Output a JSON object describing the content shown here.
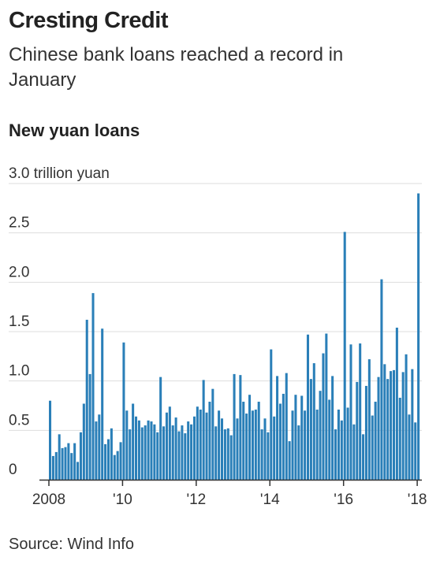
{
  "header": {
    "title": "Cresting Credit",
    "subtitle": "Chinese bank loans reached a record in January"
  },
  "chart_title": "New yuan loans",
  "source": "Source: Wind Info",
  "colors": {
    "bar": "#2a7fb8",
    "grid": "#dddddd",
    "axis": "#333333"
  },
  "chart_data": {
    "type": "bar",
    "title": "New yuan loans",
    "ylabel": "trillion yuan",
    "ylim": [
      0,
      3.0
    ],
    "y_ticks": [
      0,
      0.5,
      1.0,
      1.5,
      2.0,
      2.5,
      3.0
    ],
    "y_tick_labels": [
      "0",
      "0.5",
      "1.0",
      "1.5",
      "2.0",
      "2.5",
      "3.0 trillion yuan"
    ],
    "x_ticks": [
      "2008",
      "'10",
      "'12",
      "'14",
      "'16",
      "'18"
    ],
    "x_tick_years": [
      2008,
      2010,
      2012,
      2014,
      2016,
      2018
    ],
    "start": "2008-01",
    "categories": [
      "2008-01",
      "2008-02",
      "2008-03",
      "2008-04",
      "2008-05",
      "2008-06",
      "2008-07",
      "2008-08",
      "2008-09",
      "2008-10",
      "2008-11",
      "2008-12",
      "2009-01",
      "2009-02",
      "2009-03",
      "2009-04",
      "2009-05",
      "2009-06",
      "2009-07",
      "2009-08",
      "2009-09",
      "2009-10",
      "2009-11",
      "2009-12",
      "2010-01",
      "2010-02",
      "2010-03",
      "2010-04",
      "2010-05",
      "2010-06",
      "2010-07",
      "2010-08",
      "2010-09",
      "2010-10",
      "2010-11",
      "2010-12",
      "2011-01",
      "2011-02",
      "2011-03",
      "2011-04",
      "2011-05",
      "2011-06",
      "2011-07",
      "2011-08",
      "2011-09",
      "2011-10",
      "2011-11",
      "2011-12",
      "2012-01",
      "2012-02",
      "2012-03",
      "2012-04",
      "2012-05",
      "2012-06",
      "2012-07",
      "2012-08",
      "2012-09",
      "2012-10",
      "2012-11",
      "2012-12",
      "2013-01",
      "2013-02",
      "2013-03",
      "2013-04",
      "2013-05",
      "2013-06",
      "2013-07",
      "2013-08",
      "2013-09",
      "2013-10",
      "2013-11",
      "2013-12",
      "2014-01",
      "2014-02",
      "2014-03",
      "2014-04",
      "2014-05",
      "2014-06",
      "2014-07",
      "2014-08",
      "2014-09",
      "2014-10",
      "2014-11",
      "2014-12",
      "2015-01",
      "2015-02",
      "2015-03",
      "2015-04",
      "2015-05",
      "2015-06",
      "2015-07",
      "2015-08",
      "2015-09",
      "2015-10",
      "2015-11",
      "2015-12",
      "2016-01",
      "2016-02",
      "2016-03",
      "2016-04",
      "2016-05",
      "2016-06",
      "2016-07",
      "2016-08",
      "2016-09",
      "2016-10",
      "2016-11",
      "2016-12",
      "2017-01",
      "2017-02",
      "2017-03",
      "2017-04",
      "2017-05",
      "2017-06",
      "2017-07",
      "2017-08",
      "2017-09",
      "2017-10",
      "2017-11",
      "2017-12",
      "2018-01"
    ],
    "values": [
      0.8,
      0.24,
      0.28,
      0.46,
      0.32,
      0.33,
      0.37,
      0.27,
      0.37,
      0.18,
      0.48,
      0.77,
      1.62,
      1.07,
      1.89,
      0.59,
      0.66,
      1.53,
      0.36,
      0.41,
      0.52,
      0.25,
      0.29,
      0.38,
      1.39,
      0.7,
      0.51,
      0.77,
      0.64,
      0.6,
      0.53,
      0.55,
      0.6,
      0.59,
      0.56,
      0.48,
      1.04,
      0.54,
      0.68,
      0.74,
      0.55,
      0.63,
      0.49,
      0.55,
      0.47,
      0.59,
      0.56,
      0.64,
      0.74,
      0.71,
      1.01,
      0.68,
      0.79,
      0.92,
      0.54,
      0.7,
      0.62,
      0.51,
      0.52,
      0.45,
      1.07,
      0.62,
      1.06,
      0.79,
      0.67,
      0.86,
      0.7,
      0.71,
      0.79,
      0.51,
      0.62,
      0.48,
      1.32,
      0.64,
      1.05,
      0.77,
      0.87,
      1.08,
      0.39,
      0.7,
      0.86,
      0.55,
      0.85,
      0.7,
      1.47,
      1.02,
      1.18,
      0.71,
      0.9,
      1.28,
      1.48,
      0.81,
      1.05,
      0.51,
      0.71,
      0.6,
      2.51,
      0.73,
      1.37,
      0.56,
      0.99,
      1.38,
      0.46,
      0.95,
      1.22,
      0.65,
      0.79,
      1.04,
      2.03,
      1.17,
      1.02,
      1.1,
      1.11,
      1.54,
      0.83,
      1.09,
      1.27,
      0.66,
      1.12,
      0.58,
      2.9
    ]
  }
}
